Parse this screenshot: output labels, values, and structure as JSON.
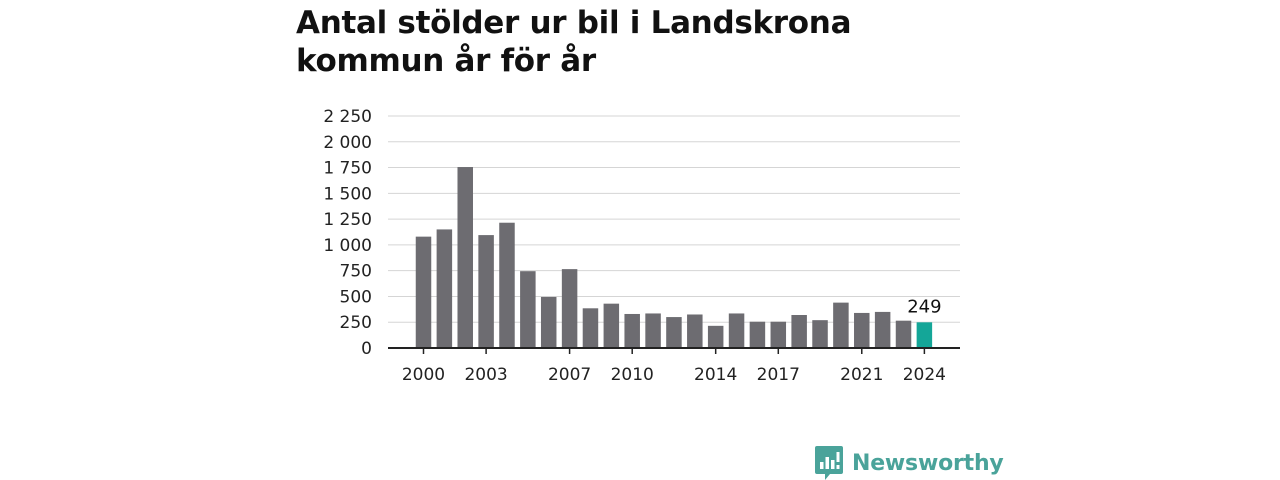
{
  "title_lines": [
    "Antal stölder ur bil i Landskrona",
    "kommun år för år"
  ],
  "brand": "Newsworthy",
  "colors": {
    "bar": "#6d6c71",
    "highlight": "#14a698",
    "grid": "#d5d5d5",
    "axis": "#222222",
    "brand": "#4aa39a"
  },
  "chart_data": {
    "type": "bar",
    "title": "Antal stölder ur bil i Landskrona kommun år för år",
    "categories": [
      2000,
      2001,
      2002,
      2003,
      2004,
      2005,
      2006,
      2007,
      2008,
      2009,
      2010,
      2011,
      2012,
      2013,
      2014,
      2015,
      2016,
      2017,
      2018,
      2019,
      2020,
      2021,
      2022,
      2023,
      2024
    ],
    "values": [
      1080,
      1150,
      1755,
      1095,
      1215,
      745,
      495,
      765,
      385,
      430,
      330,
      335,
      300,
      325,
      215,
      335,
      255,
      255,
      320,
      270,
      440,
      340,
      350,
      265,
      249
    ],
    "highlight_index": 24,
    "data_labels": [
      {
        "category": 2024,
        "text": "249"
      }
    ],
    "x_tick_labels": [
      "2000",
      "2003",
      "2007",
      "2010",
      "2014",
      "2017",
      "2021",
      "2024"
    ],
    "y_ticks": [
      0,
      250,
      500,
      750,
      1000,
      1250,
      1500,
      1750,
      2000,
      2250
    ],
    "y_tick_labels": [
      "0",
      "250",
      "500",
      "750",
      "1 000",
      "1 250",
      "1 500",
      "1 750",
      "2 000",
      "2 250"
    ],
    "ylim": [
      0,
      2250
    ],
    "grid": true,
    "xlabel": "",
    "ylabel": ""
  }
}
